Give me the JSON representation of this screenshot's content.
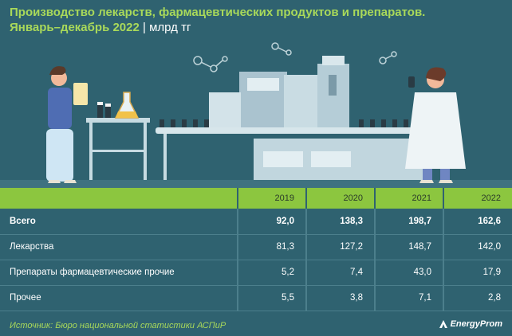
{
  "header": {
    "title": "Производство лекарств, фармацевтических продуктов и препаратов.",
    "subtitle": "Январь–декабрь 2022",
    "unit": "млрд тг"
  },
  "chart_data": {
    "type": "table",
    "columns": [
      "2019",
      "2020",
      "2021",
      "2022"
    ],
    "rows": [
      {
        "label": "Всего",
        "values": [
          "92,0",
          "138,3",
          "198,7",
          "162,6"
        ]
      },
      {
        "label": "Лекарства",
        "values": [
          "81,3",
          "127,2",
          "148,7",
          "142,0"
        ]
      },
      {
        "label": "Препараты фармацевтические прочие",
        "values": [
          "5,2",
          "7,4",
          "43,0",
          "17,9"
        ]
      },
      {
        "label": "Прочее",
        "values": [
          "5,5",
          "3,8",
          "7,1",
          "2,8"
        ]
      }
    ]
  },
  "footer": {
    "source": "Источник: Бюро национальной статистики АСПиР",
    "brand": "EnergyProm"
  },
  "colors": {
    "background": "#2f6270",
    "accent": "#a9d95a",
    "header_row": "#8cc63f"
  }
}
